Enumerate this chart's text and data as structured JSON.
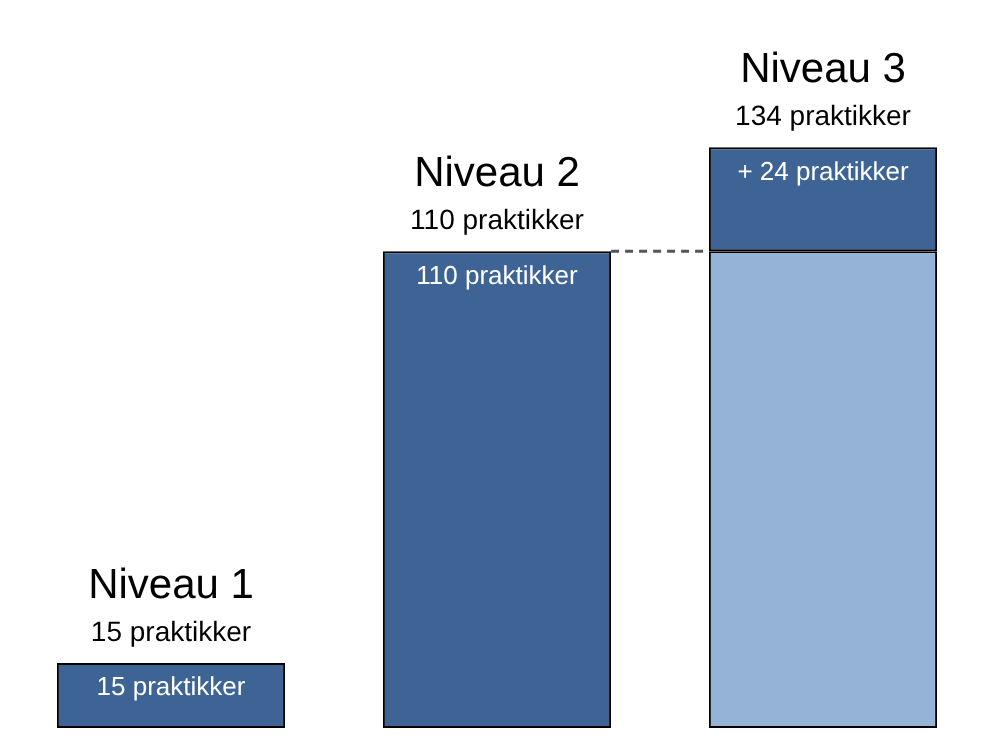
{
  "chart_data": {
    "type": "bar",
    "stacked": true,
    "categories": [
      "Niveau 1",
      "Niveau 2",
      "Niveau 3"
    ],
    "series": [
      {
        "colors": [
          "#3e6496",
          "#3e6496",
          "#95b3d7"
        ],
        "values": [
          15,
          110,
          110
        ],
        "value_labels": [
          "15 praktikker",
          "110 praktikker",
          null
        ]
      },
      {
        "color": "#3e6496",
        "values": [
          null,
          null,
          24
        ],
        "value_labels": [
          null,
          null,
          "+ 24 praktikker"
        ]
      }
    ],
    "totals": [
      "15 praktikker",
      "110 praktikker",
      "134 praktikker"
    ],
    "ref_lines": [
      {
        "axis": "y",
        "value": 110,
        "line_style": "dashed",
        "color": "#555555"
      }
    ],
    "legend": false
  }
}
